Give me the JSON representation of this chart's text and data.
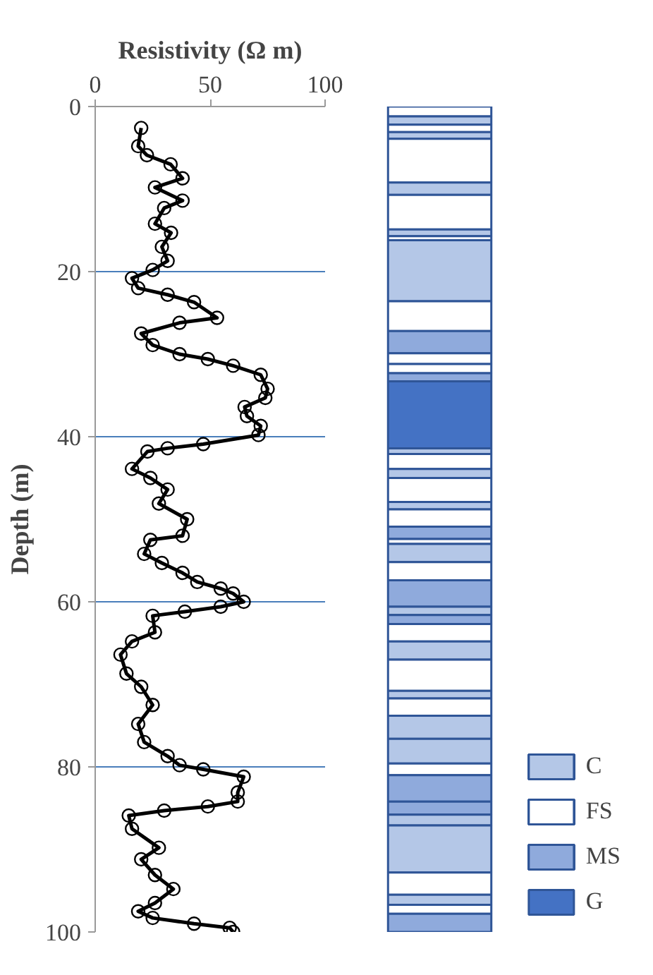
{
  "chart_data": [
    {
      "type": "line",
      "xlabel": "Resistivity (Ω m)",
      "ylabel": "Depth (m)",
      "xlim": [
        0,
        100
      ],
      "xticks": [
        0,
        50,
        100
      ],
      "ylim": [
        100,
        0
      ],
      "yticks": [
        0,
        20,
        40,
        60,
        80,
        100
      ],
      "grid": "y",
      "marker": "circle",
      "line_style": "solid",
      "series": [
        {
          "color": "#000000",
          "x": [
            20,
            18.7,
            22.5,
            32.8,
            38,
            26,
            38,
            30,
            26,
            33,
            29,
            31.5,
            25,
            16,
            18.7,
            31.5,
            43,
            53,
            36.7,
            20,
            25,
            36.7,
            49,
            60,
            72,
            75,
            74,
            65,
            66,
            72,
            71,
            47,
            31.5,
            22.7,
            16,
            24,
            31.5,
            27.7,
            40,
            38,
            24,
            21.3,
            29,
            38,
            44.4,
            54.6,
            60,
            64.6,
            54.6,
            39,
            25,
            26,
            16,
            11,
            13.6,
            20,
            25,
            18.7,
            21.3,
            31.5,
            36.7,
            47,
            64.6,
            62,
            62,
            49,
            30,
            14.6,
            16,
            27.7,
            20,
            26,
            34,
            26,
            18.7,
            25,
            43,
            58.5,
            60
          ],
          "values": [
            2.6,
            4.8,
            5.9,
            7,
            8.7,
            9.8,
            11.4,
            12.3,
            14.2,
            15.3,
            17,
            18.7,
            19.8,
            20.8,
            22,
            22.8,
            23.7,
            25.6,
            26.2,
            27.5,
            28.9,
            30,
            30.6,
            31.4,
            32.5,
            34.2,
            35.3,
            36.4,
            37.5,
            38.7,
            39.8,
            40.9,
            41.4,
            41.8,
            43.9,
            45,
            46.4,
            48.1,
            50,
            52,
            52.5,
            54.2,
            55.3,
            56.5,
            57.6,
            58.4,
            59,
            60,
            60.6,
            61.2,
            61.7,
            63.7,
            64.8,
            66.4,
            68.7,
            70.3,
            72.5,
            74.8,
            77,
            78.7,
            79.8,
            80.3,
            81.2,
            83.1,
            84.2,
            84.8,
            85.3,
            85.9,
            87.5,
            89.8,
            91.2,
            93.1,
            94.8,
            96.5,
            97.5,
            98.3,
            99,
            99.5,
            100
          ]
        }
      ]
    },
    {
      "type": "bar",
      "stacked": true,
      "categories": [
        null
      ],
      "ylim": [
        100,
        0
      ],
      "tick_labels": false,
      "legend": "bottom right",
      "series": [
        {
          "color": "#ffffff",
          "values": [
            1.2
          ]
        },
        {
          "name": "C",
          "color": "#b4c7e7",
          "values": [
            1.0
          ]
        },
        {
          "name": "FS",
          "color": "#ffffff",
          "values": [
            0.9
          ]
        },
        {
          "color": "#b4c7e7",
          "values": [
            0.8
          ]
        },
        {
          "color": "#ffffff",
          "values": [
            5.3
          ]
        },
        {
          "color": "#b4c7e7",
          "values": [
            1.5
          ]
        },
        {
          "color": "#ffffff",
          "values": [
            4.2
          ]
        },
        {
          "color": "#b4c7e7",
          "values": [
            0.8
          ]
        },
        {
          "color": "#ffffff",
          "values": [
            0.5
          ]
        },
        {
          "color": "#b4c7e7",
          "values": [
            7.4
          ]
        },
        {
          "color": "#ffffff",
          "values": [
            3.6
          ]
        },
        {
          "name": "MS",
          "color": "#8faadc",
          "values": [
            2.7
          ]
        },
        {
          "color": "#ffffff",
          "values": [
            1.3
          ]
        },
        {
          "color": "#ffffff",
          "values": [
            1.1
          ]
        },
        {
          "color": "#8faadc",
          "values": [
            1.0
          ]
        },
        {
          "name": "G",
          "color": "#4472c4",
          "values": [
            8.1
          ]
        },
        {
          "color": "#b4c7e7",
          "values": [
            0.7
          ]
        },
        {
          "color": "#ffffff",
          "values": [
            1.8
          ]
        },
        {
          "color": "#b4c7e7",
          "values": [
            1.1
          ]
        },
        {
          "color": "#ffffff",
          "values": [
            2.9
          ]
        },
        {
          "color": "#b4c7e7",
          "values": [
            0.9
          ]
        },
        {
          "color": "#ffffff",
          "values": [
            2.1
          ]
        },
        {
          "color": "#8faadc",
          "values": [
            1.5
          ]
        },
        {
          "color": "#ffffff",
          "values": [
            0.6
          ]
        },
        {
          "color": "#b4c7e7",
          "values": [
            2.2
          ]
        },
        {
          "color": "#ffffff",
          "values": [
            2.2
          ]
        },
        {
          "color": "#8faadc",
          "values": [
            3.2
          ]
        },
        {
          "color": "#b4c7e7",
          "values": [
            1.0
          ]
        },
        {
          "color": "#8faadc",
          "values": [
            1.1
          ]
        },
        {
          "color": "#ffffff",
          "values": [
            2.1
          ]
        },
        {
          "color": "#b4c7e7",
          "values": [
            2.2
          ]
        },
        {
          "color": "#ffffff",
          "values": [
            3.8
          ]
        },
        {
          "color": "#b4c7e7",
          "values": [
            0.9
          ]
        },
        {
          "color": "#ffffff",
          "values": [
            2.1
          ]
        },
        {
          "color": "#b4c7e7",
          "values": [
            2.8
          ]
        },
        {
          "color": "#b4c7e7",
          "values": [
            3.0
          ]
        },
        {
          "color": "#ffffff",
          "values": [
            1.4
          ]
        },
        {
          "color": "#8faadc",
          "values": [
            3.2
          ]
        },
        {
          "color": "#8faadc",
          "values": [
            1.6
          ]
        },
        {
          "color": "#b4c7e7",
          "values": [
            1.3
          ]
        },
        {
          "color": "#b4c7e7",
          "values": [
            5.7
          ]
        },
        {
          "color": "#ffffff",
          "values": [
            2.7
          ]
        },
        {
          "color": "#b4c7e7",
          "values": [
            1.2
          ]
        },
        {
          "color": "#ffffff",
          "values": [
            1.1
          ]
        },
        {
          "color": "#8faadc",
          "values": [
            2.2
          ]
        }
      ]
    }
  ]
}
